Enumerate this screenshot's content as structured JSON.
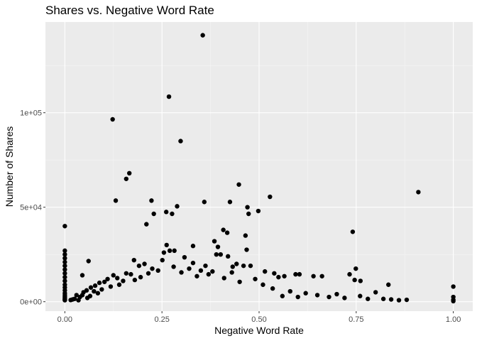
{
  "chart_data": {
    "type": "scatter",
    "title": "Shares vs. Negative Word Rate",
    "xlabel": "Negative Word Rate",
    "ylabel": "Number of Shares",
    "xlim": [
      -0.05,
      1.05
    ],
    "ylim": [
      -5000,
      148000
    ],
    "x_ticks": [
      0,
      0.25,
      0.5,
      0.75,
      1
    ],
    "x_tick_labels": [
      "0.00",
      "0.25",
      "0.50",
      "0.75",
      "1.00"
    ],
    "y_ticks": [
      0,
      50000,
      100000
    ],
    "y_tick_labels": [
      "0e+00",
      "5e+04",
      "1e+05"
    ],
    "x_minor_ticks": [
      0.125,
      0.375,
      0.625,
      0.875
    ],
    "y_minor_ticks": [
      25000,
      75000,
      125000
    ],
    "grid": true,
    "legend": "none",
    "colors": {
      "panel_background": "#ebebeb",
      "grid_major": "#ffffff",
      "grid_minor": "#f5f5f5",
      "point": "#000000",
      "tick_label": "#4d4d4d",
      "tick": "#333333"
    },
    "series": [
      {
        "values": [
          [
            0.355,
            141000
          ],
          [
            0.268,
            108500
          ],
          [
            0.123,
            96500
          ],
          [
            0.298,
            85000
          ],
          [
            0.166,
            68000
          ],
          [
            0.158,
            65000
          ],
          [
            0.131,
            53500
          ],
          [
            0.223,
            53500
          ],
          [
            0.229,
            46500
          ],
          [
            0.261,
            47500
          ],
          [
            0.276,
            46500
          ],
          [
            0.289,
            50500
          ],
          [
            0.359,
            52800
          ],
          [
            0.425,
            52800
          ],
          [
            0.448,
            62000
          ],
          [
            0.47,
            50000
          ],
          [
            0.473,
            46500
          ],
          [
            0.498,
            48000
          ],
          [
            0.528,
            55500
          ],
          [
            0.465,
            35000
          ],
          [
            0.91,
            58000
          ],
          [
            0.741,
            37000
          ],
          [
            0.21,
            41000
          ],
          [
            0.0,
            40000
          ],
          [
            0.0,
            27000
          ],
          [
            0.0,
            25000
          ],
          [
            0.0,
            23000
          ],
          [
            0.0,
            21000
          ],
          [
            0.0,
            19000
          ],
          [
            0.0,
            17000
          ],
          [
            0.0,
            15000
          ],
          [
            0.0,
            13000
          ],
          [
            0.0,
            11000
          ],
          [
            0.0,
            9000
          ],
          [
            0.0,
            7500
          ],
          [
            0.0,
            6000
          ],
          [
            0.0,
            4500
          ],
          [
            0.0,
            3500
          ],
          [
            0.0,
            2500
          ],
          [
            0.0,
            1800
          ],
          [
            0.0,
            1200
          ],
          [
            0.0,
            800
          ],
          [
            0.061,
            21500
          ],
          [
            0.045,
            14000
          ],
          [
            0.178,
            22000
          ],
          [
            0.251,
            22000
          ],
          [
            0.27,
            27000
          ],
          [
            0.33,
            29500
          ],
          [
            0.262,
            30000
          ],
          [
            0.282,
            27000
          ],
          [
            0.255,
            26000
          ],
          [
            0.385,
            32000
          ],
          [
            0.408,
            38000
          ],
          [
            0.418,
            36500
          ],
          [
            0.394,
            29000
          ],
          [
            0.401,
            25000
          ],
          [
            0.39,
            25000
          ],
          [
            0.42,
            24000
          ],
          [
            0.442,
            20000
          ],
          [
            0.432,
            18500
          ],
          [
            0.308,
            23500
          ],
          [
            0.33,
            20500
          ],
          [
            0.362,
            19000
          ],
          [
            0.38,
            16000
          ],
          [
            0.46,
            19000
          ],
          [
            0.468,
            27500
          ],
          [
            0.478,
            19000
          ],
          [
            0.539,
            15000
          ],
          [
            0.565,
            13500
          ],
          [
            0.594,
            14500
          ],
          [
            0.604,
            14500
          ],
          [
            0.64,
            13500
          ],
          [
            0.662,
            13500
          ],
          [
            0.749,
            17500
          ],
          [
            0.733,
            14500
          ],
          [
            0.761,
            11000
          ],
          [
            0.833,
            9000
          ],
          [
            1.0,
            8000
          ],
          [
            1.0,
            2500
          ],
          [
            1.0,
            1000
          ],
          [
            1.0,
            300
          ],
          [
            0.746,
            11500
          ],
          [
            0.55,
            13000
          ],
          [
            0.515,
            16000
          ],
          [
            0.205,
            20000
          ],
          [
            0.191,
            19000
          ],
          [
            0.158,
            15000
          ],
          [
            0.125,
            14000
          ],
          [
            0.11,
            12000
          ],
          [
            0.102,
            10500
          ],
          [
            0.089,
            10000
          ],
          [
            0.078,
            8500
          ],
          [
            0.067,
            7500
          ],
          [
            0.056,
            6000
          ],
          [
            0.048,
            5000
          ],
          [
            0.045,
            3500
          ],
          [
            0.039,
            2500
          ],
          [
            0.03,
            3500
          ],
          [
            0.025,
            1500
          ],
          [
            0.02,
            1200
          ],
          [
            0.015,
            900
          ],
          [
            0.035,
            800
          ],
          [
            0.8,
            5000
          ],
          [
            0.82,
            1500
          ],
          [
            0.84,
            1200
          ],
          [
            0.86,
            800
          ],
          [
            0.88,
            1000
          ],
          [
            0.78,
            1500
          ],
          [
            0.76,
            3000
          ],
          [
            0.72,
            2000
          ],
          [
            0.7,
            4000
          ],
          [
            0.68,
            2500
          ],
          [
            0.65,
            3500
          ],
          [
            0.62,
            4500
          ],
          [
            0.6,
            2500
          ],
          [
            0.58,
            5500
          ],
          [
            0.56,
            3000
          ],
          [
            0.535,
            7000
          ],
          [
            0.51,
            9000
          ],
          [
            0.49,
            12000
          ],
          [
            0.45,
            10500
          ],
          [
            0.43,
            15500
          ],
          [
            0.41,
            12500
          ],
          [
            0.37,
            14500
          ],
          [
            0.35,
            16500
          ],
          [
            0.34,
            13500
          ],
          [
            0.32,
            17500
          ],
          [
            0.3,
            15500
          ],
          [
            0.28,
            18500
          ],
          [
            0.24,
            16500
          ],
          [
            0.225,
            17500
          ],
          [
            0.215,
            15000
          ],
          [
            0.195,
            13000
          ],
          [
            0.18,
            11500
          ],
          [
            0.17,
            14500
          ],
          [
            0.15,
            11000
          ],
          [
            0.14,
            9000
          ],
          [
            0.135,
            12500
          ],
          [
            0.118,
            8000
          ],
          [
            0.095,
            6500
          ],
          [
            0.085,
            4500
          ],
          [
            0.075,
            5500
          ],
          [
            0.065,
            3000
          ],
          [
            0.058,
            2000
          ]
        ]
      }
    ]
  }
}
